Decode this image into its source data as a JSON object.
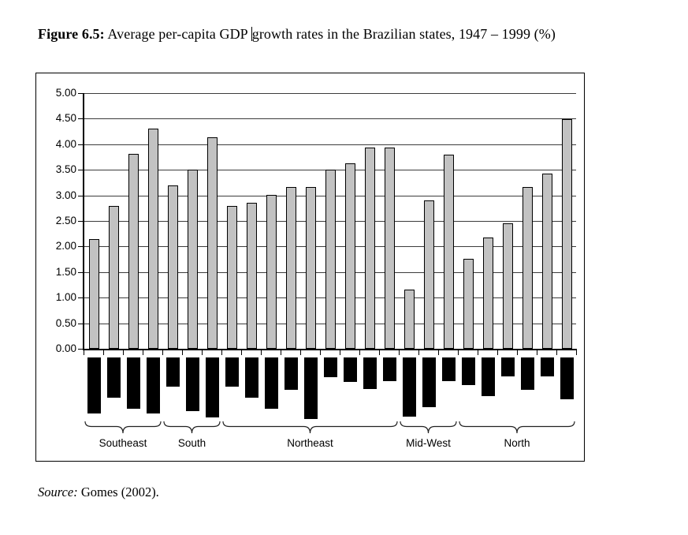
{
  "caption": {
    "label": "Figure 6.5:",
    "before_cursor": " Average per-capita GDP ",
    "after_cursor": "growth rates in the Brazilian states, 1947 – 1999 (%)"
  },
  "source": {
    "label": "Source:",
    "text": " Gomes (2002)."
  },
  "chart_data": {
    "type": "bar",
    "title": "Average per-capita GDP growth rates in the Brazilian states, 1947 – 1999 (%)",
    "xlabel": "",
    "ylabel": "",
    "ylim": [
      0,
      5
    ],
    "ytick_step": 0.5,
    "ytick_labels": [
      "5.00",
      "4.50",
      "4.00",
      "3.50",
      "3.00",
      "2.50",
      "2.00",
      "1.50",
      "1.00",
      "0.50",
      "0.00"
    ],
    "grid": true,
    "legend": "none",
    "bar_color": "#c2c2c2",
    "below_axis_bar_color": "#000000",
    "groups": [
      {
        "label": "Southeast",
        "count": 4
      },
      {
        "label": "South",
        "count": 3
      },
      {
        "label": "Northeast",
        "count": 9
      },
      {
        "label": "Mid-West",
        "count": 3
      },
      {
        "label": "North",
        "count": 6
      }
    ],
    "series": [
      {
        "name": "average-growth-rate-pct",
        "values": [
          2.15,
          2.8,
          3.81,
          4.3,
          3.2,
          3.5,
          4.14,
          2.79,
          2.85,
          3.01,
          3.16,
          3.17,
          3.5,
          3.62,
          3.94,
          3.94,
          1.15,
          2.9,
          3.79,
          1.76,
          2.18,
          2.46,
          3.17,
          3.43,
          4.49
        ]
      },
      {
        "name": "below-axis-black-bars",
        "start_value": -0.17,
        "values": [
          -1.26,
          -0.95,
          -1.17,
          -1.26,
          -0.74,
          -1.22,
          -1.34,
          -0.74,
          -0.95,
          -1.17,
          -0.8,
          -1.37,
          -0.55,
          -0.65,
          -0.78,
          -0.63,
          -1.32,
          -1.14,
          -0.63,
          -0.71,
          -0.92,
          -0.54,
          -0.8,
          -0.54,
          -0.98
        ]
      }
    ]
  }
}
